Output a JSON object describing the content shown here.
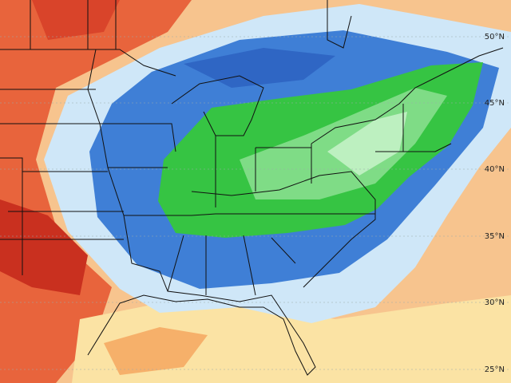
{
  "map": {
    "latitude_labels": [
      "50°N",
      "45°N",
      "40°N",
      "35°N",
      "30°N",
      "25°N"
    ]
  }
}
